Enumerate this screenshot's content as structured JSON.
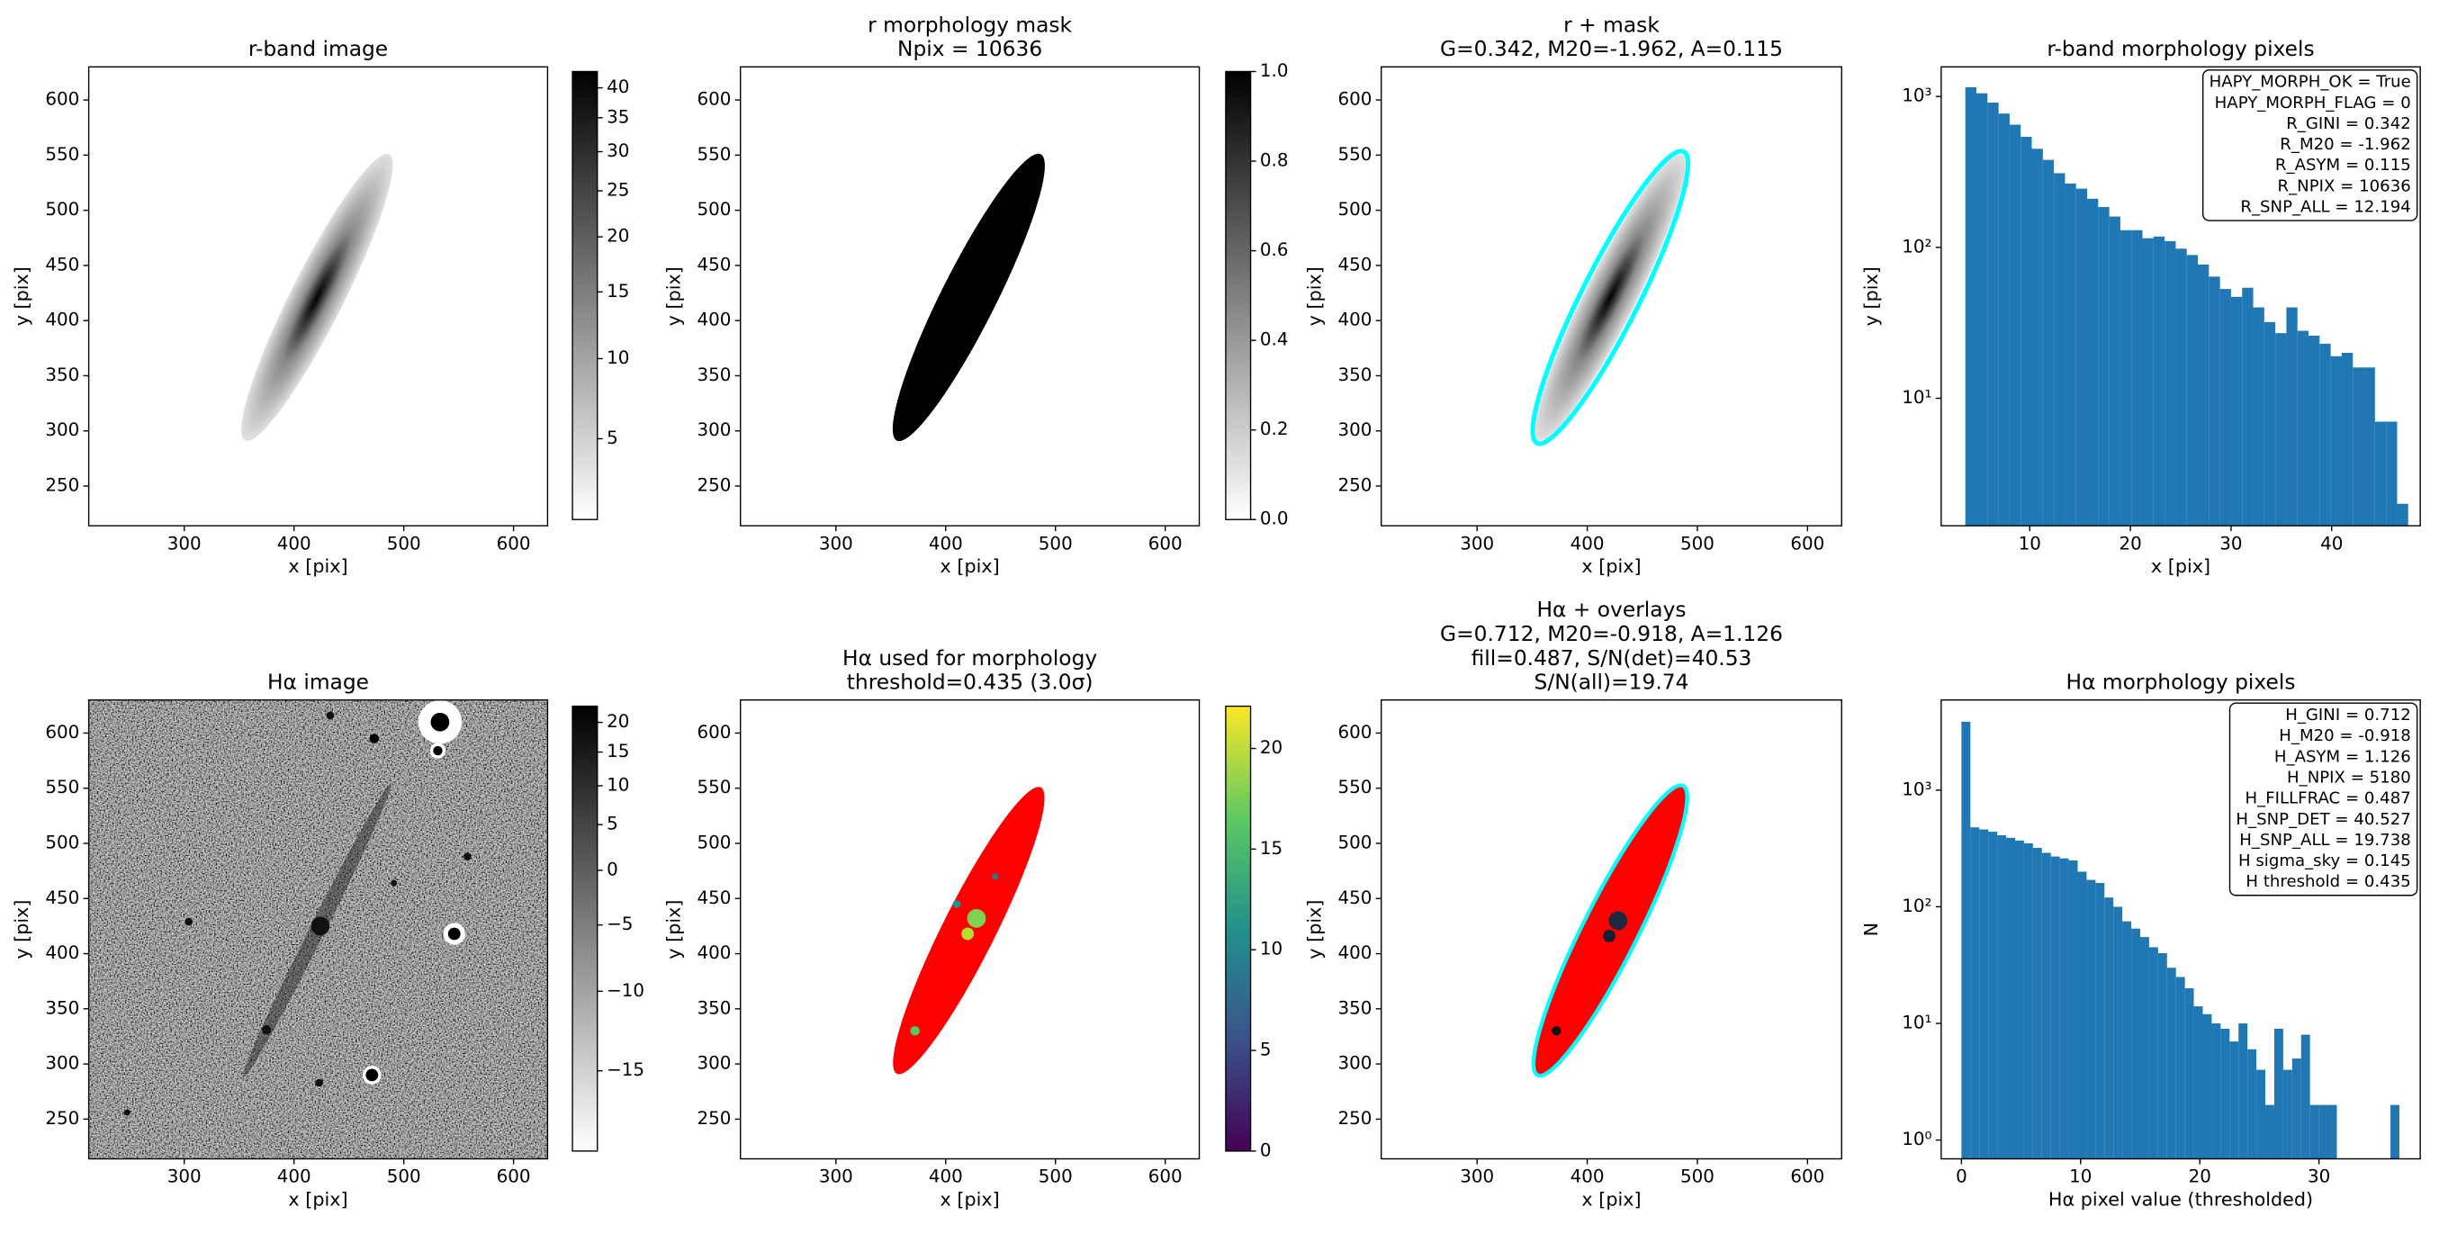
{
  "chart_data": [
    {
      "type": "image",
      "title": "r-band image",
      "xlabel": "x [pix]",
      "ylabel": "y [pix]",
      "xlim": [
        213,
        631
      ],
      "ylim": [
        214,
        630
      ],
      "xticks": [
        300,
        400,
        500,
        600
      ],
      "yticks": [
        250,
        300,
        350,
        400,
        450,
        500,
        550,
        600
      ],
      "cmap": "gray_r",
      "colorbar": {
        "lim": [
          0.5,
          43
        ],
        "scale": "asinh",
        "linear_width": 0.3,
        "ticks": [
          5,
          10,
          15,
          20,
          25,
          30,
          35,
          40
        ]
      }
    },
    {
      "type": "image",
      "title": [
        "r morphology mask",
        "Npix = 10636"
      ],
      "xlabel": "x [pix]",
      "ylabel": "y [pix]",
      "xlim": [
        213,
        631
      ],
      "ylim": [
        214,
        630
      ],
      "xticks": [
        300,
        400,
        500,
        600
      ],
      "yticks": [
        250,
        300,
        350,
        400,
        450,
        500,
        550,
        600
      ],
      "cmap": "gray_r",
      "colorbar": {
        "lim": [
          0,
          1
        ],
        "scale": "linear",
        "ticks": [
          {
            "value": 0,
            "label": "0.0"
          },
          0.2,
          0.4,
          0.6,
          0.8,
          {
            "value": 1,
            "label": "1.0"
          }
        ]
      }
    },
    {
      "type": "image",
      "title": [
        "r + mask",
        "G=0.342, M20=-1.962, A=0.115"
      ],
      "xlabel": "x [pix]",
      "ylabel": "y [pix]",
      "xlim": [
        213,
        631
      ],
      "ylim": [
        214,
        630
      ],
      "xticks": [
        300,
        400,
        500,
        600
      ],
      "yticks": [
        250,
        300,
        350,
        400,
        450,
        500,
        550,
        600
      ],
      "cmap": "gray_r"
    },
    {
      "type": "histogram",
      "title": "r-band morphology pixels",
      "xlabel": "x [pix]",
      "ylabel": "y [pix]",
      "color": "#1f77b4",
      "yscale": "log",
      "bins": [
        3.6,
        4.7,
        5.8,
        6.9,
        8.0,
        9.1,
        10.2,
        11.3,
        12.4,
        13.5,
        14.6,
        15.7,
        16.8,
        17.9,
        19.0,
        20.1,
        21.2,
        22.3,
        23.4,
        24.5,
        25.6,
        26.7,
        27.8,
        28.9,
        30.0,
        31.1,
        32.2,
        33.3,
        34.4,
        35.5,
        36.6,
        37.7,
        38.8,
        39.9,
        41.0,
        42.1,
        43.2,
        44.3,
        45.4,
        46.5,
        47.6
      ],
      "values": [
        1150,
        1050,
        910,
        770,
        650,
        540,
        450,
        380,
        310,
        265,
        245,
        210,
        185,
        160,
        130,
        130,
        115,
        118,
        110,
        98,
        89,
        77,
        64,
        53,
        47,
        54,
        40,
        32,
        27,
        40,
        28,
        26,
        23,
        19,
        20,
        16,
        16,
        7,
        7,
        2
      ],
      "xlim": [
        1.2,
        48.8
      ],
      "ylim": [
        1.43,
        1570
      ],
      "xticks": [
        10,
        20,
        30,
        40
      ],
      "yticks": [
        {
          "value": 10,
          "label": "10¹"
        },
        {
          "value": 100,
          "label": "10²"
        },
        {
          "value": 1000,
          "label": "10³"
        }
      ],
      "annotation": [
        "HAPY_MORPH_OK = True",
        "HAPY_MORPH_FLAG = 0",
        "R_GINI = 0.342",
        "R_M20 = -1.962",
        "R_ASYM = 0.115",
        "R_NPIX = 10636",
        "R_SNP_ALL = 12.194"
      ]
    },
    {
      "type": "image",
      "title": "Hα image",
      "xlabel": "x [pix]",
      "ylabel": "y [pix]",
      "xlim": [
        213,
        631
      ],
      "ylim": [
        214,
        630
      ],
      "xticks": [
        300,
        400,
        500,
        600
      ],
      "yticks": [
        250,
        300,
        350,
        400,
        450,
        500,
        550,
        600
      ],
      "cmap": "gray_r",
      "colorbar": {
        "lim": [
          -19.5,
          23
        ],
        "scale": "asinh",
        "linear_width": 0.3,
        "ticks": [
          {
            "value": -15,
            "label": "−15"
          },
          {
            "value": -10,
            "label": "−10"
          },
          {
            "value": -5,
            "label": "−5"
          },
          0,
          5,
          10,
          15,
          20
        ]
      }
    },
    {
      "type": "image",
      "title": [
        "Hα used for morphology",
        "threshold=0.435 (3.0σ)"
      ],
      "xlabel": "x [pix]",
      "ylabel": "y [pix]",
      "xlim": [
        213,
        631
      ],
      "ylim": [
        214,
        630
      ],
      "xticks": [
        300,
        400,
        500,
        600
      ],
      "yticks": [
        250,
        300,
        350,
        400,
        450,
        500,
        550,
        600
      ],
      "cmap": "viridis",
      "colorbar": {
        "lim": [
          0,
          22.1
        ],
        "scale": "linear",
        "ticks": [
          0,
          5,
          10,
          15,
          20
        ]
      }
    },
    {
      "type": "image",
      "title": [
        "Hα + overlays",
        "G=0.712, M20=-0.918, A=1.126",
        "fill=0.487, S/N(det)=40.53",
        "S/N(all)=19.74"
      ],
      "xlabel": "x [pix]",
      "ylabel": "y [pix]",
      "xlim": [
        213,
        631
      ],
      "ylim": [
        214,
        630
      ],
      "xticks": [
        300,
        400,
        500,
        600
      ],
      "yticks": [
        250,
        300,
        350,
        400,
        450,
        500,
        550,
        600
      ],
      "cmap": "gray_r"
    },
    {
      "type": "histogram",
      "title": "Hα morphology pixels",
      "xlabel": "Hα pixel value (thresholded)",
      "ylabel": "N",
      "color": "#1f77b4",
      "yscale": "log",
      "bins": [
        0,
        0.75,
        1.5,
        2.25,
        3,
        3.75,
        4.5,
        5.25,
        6,
        6.75,
        7.5,
        8.25,
        9,
        9.75,
        10.5,
        11.25,
        12,
        12.75,
        13.5,
        14.25,
        15,
        15.75,
        16.5,
        17.25,
        18,
        18.75,
        19.5,
        20.25,
        21,
        21.75,
        22.5,
        23.25,
        24,
        24.75,
        25.5,
        26.25,
        27,
        27.75,
        28.5,
        29.25,
        30,
        30.75,
        31.5,
        32.25,
        33,
        33.75,
        34.5,
        35.25,
        36,
        36.75
      ],
      "values": [
        3860,
        480,
        460,
        440,
        410,
        390,
        370,
        350,
        320,
        290,
        270,
        260,
        250,
        200,
        170,
        160,
        120,
        100,
        75,
        65,
        55,
        45,
        40,
        30,
        25,
        20,
        14,
        12,
        10,
        9,
        7,
        10,
        6,
        4,
        2,
        9,
        4,
        5,
        8,
        2,
        2,
        2,
        0,
        0,
        0,
        0,
        0,
        0,
        2
      ],
      "xlim": [
        -1.7,
        38.5
      ],
      "ylim": [
        0.69,
        5930
      ],
      "xticks": [
        0,
        10,
        20,
        30
      ],
      "yticks": [
        {
          "value": 1,
          "label": "10⁰"
        },
        {
          "value": 10,
          "label": "10¹"
        },
        {
          "value": 100,
          "label": "10²"
        },
        {
          "value": 1000,
          "label": "10³"
        }
      ],
      "annotation": [
        "H_GINI = 0.712",
        "H_M20 = -0.918",
        "H_ASYM = 1.126",
        "H_NPIX = 5180",
        "H_FILLFRAC = 0.487",
        "H_SNP_DET = 40.527",
        "H_SNP_ALL = 19.738",
        "H sigma_sky = 0.145",
        "H threshold = 0.435"
      ]
    }
  ]
}
